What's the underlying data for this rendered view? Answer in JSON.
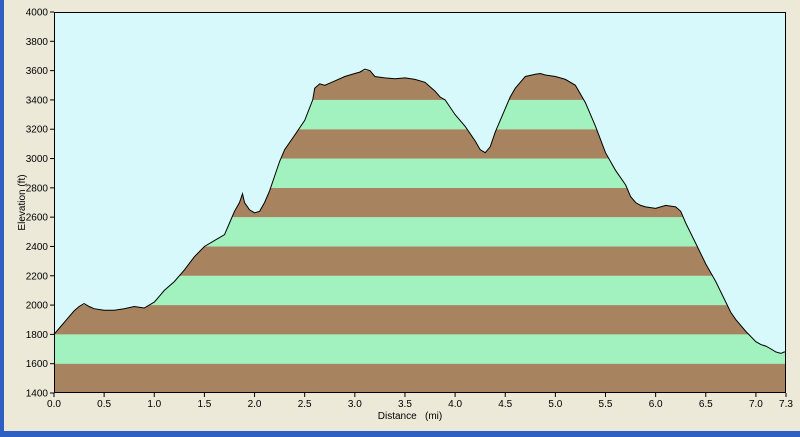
{
  "chart_data": {
    "type": "area",
    "title": "",
    "xlabel": "Distance   (mi)",
    "ylabel": "Elevation (ft)",
    "xlim": [
      0,
      7.3
    ],
    "ylim": [
      1400,
      4000
    ],
    "x_ticks": [
      "0.0",
      "0.5",
      "1.0",
      "1.5",
      "2.0",
      "2.5",
      "3.0",
      "3.5",
      "4.0",
      "4.5",
      "5.0",
      "5.5",
      "6.0",
      "6.5",
      "7.0",
      "7.3"
    ],
    "x_tick_values": [
      0,
      0.5,
      1.0,
      1.5,
      2.0,
      2.5,
      3.0,
      3.5,
      4.0,
      4.5,
      5.0,
      5.5,
      6.0,
      6.5,
      7.0,
      7.3
    ],
    "y_ticks": [
      "1400",
      "1600",
      "1800",
      "2000",
      "2200",
      "2400",
      "2600",
      "2800",
      "3000",
      "3200",
      "3400",
      "3600",
      "3800",
      "4000"
    ],
    "y_tick_values": [
      1400,
      1600,
      1800,
      2000,
      2200,
      2400,
      2600,
      2800,
      3000,
      3200,
      3400,
      3600,
      3800,
      4000
    ],
    "band_step": 200,
    "colors": {
      "plot_background": "#d8f9fb",
      "band_brown": "#a7845f",
      "band_green": "#a1f2be",
      "outline": "#000000"
    },
    "series": [
      {
        "x": [
          0.0,
          0.05,
          0.1,
          0.15,
          0.2,
          0.25,
          0.3,
          0.35,
          0.4,
          0.5,
          0.6,
          0.7,
          0.8,
          0.9,
          1.0,
          1.05,
          1.1,
          1.2,
          1.3,
          1.4,
          1.5,
          1.6,
          1.7,
          1.75,
          1.8,
          1.85,
          1.88,
          1.9,
          1.95,
          2.0,
          2.05,
          2.1,
          2.15,
          2.2,
          2.25,
          2.3,
          2.4,
          2.5,
          2.58,
          2.6,
          2.65,
          2.7,
          2.8,
          2.9,
          3.0,
          3.05,
          3.1,
          3.15,
          3.2,
          3.3,
          3.4,
          3.5,
          3.6,
          3.7,
          3.75,
          3.8,
          3.85,
          3.9,
          4.0,
          4.1,
          4.2,
          4.25,
          4.3,
          4.35,
          4.4,
          4.45,
          4.5,
          4.55,
          4.6,
          4.65,
          4.7,
          4.8,
          4.85,
          4.9,
          5.0,
          5.1,
          5.2,
          5.3,
          5.35,
          5.4,
          5.5,
          5.55,
          5.6,
          5.7,
          5.75,
          5.8,
          5.85,
          5.9,
          6.0,
          6.1,
          6.2,
          6.25,
          6.3,
          6.4,
          6.5,
          6.6,
          6.7,
          6.75,
          6.8,
          6.9,
          7.0,
          7.05,
          7.1,
          7.15,
          7.2,
          7.25,
          7.28,
          7.3
        ],
        "y": [
          1800,
          1840,
          1880,
          1920,
          1960,
          1990,
          2010,
          1990,
          1975,
          1965,
          1965,
          1975,
          1990,
          1980,
          2020,
          2060,
          2100,
          2160,
          2240,
          2330,
          2400,
          2440,
          2480,
          2560,
          2640,
          2700,
          2760,
          2700,
          2650,
          2630,
          2640,
          2700,
          2780,
          2880,
          2980,
          3060,
          3160,
          3260,
          3400,
          3480,
          3510,
          3500,
          3530,
          3560,
          3580,
          3590,
          3610,
          3600,
          3560,
          3550,
          3545,
          3550,
          3540,
          3520,
          3490,
          3460,
          3420,
          3400,
          3300,
          3220,
          3120,
          3060,
          3040,
          3080,
          3180,
          3260,
          3340,
          3420,
          3480,
          3520,
          3560,
          3575,
          3580,
          3570,
          3560,
          3540,
          3500,
          3380,
          3300,
          3220,
          3040,
          2980,
          2920,
          2820,
          2740,
          2700,
          2680,
          2670,
          2660,
          2680,
          2670,
          2640,
          2560,
          2420,
          2280,
          2160,
          2020,
          1950,
          1900,
          1820,
          1750,
          1730,
          1720,
          1700,
          1680,
          1670,
          1680,
          1680
        ]
      }
    ],
    "grid": false,
    "legend": "none"
  }
}
